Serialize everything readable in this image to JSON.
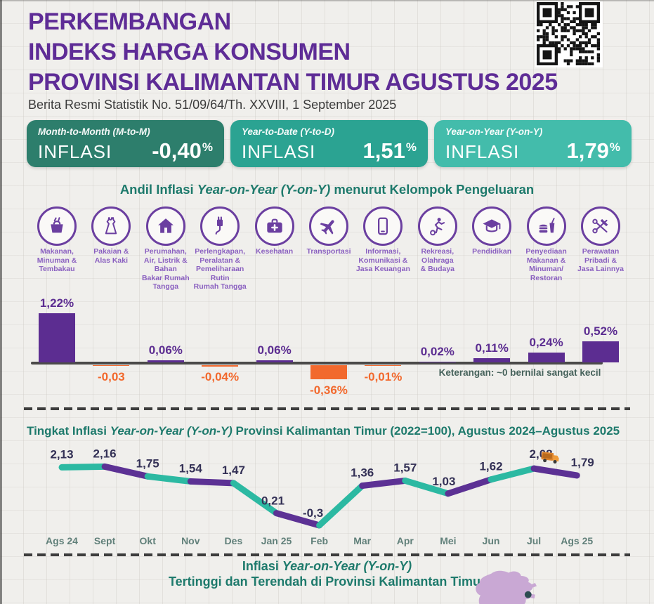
{
  "header": {
    "title_lines": [
      "PERKEMBANGAN",
      "INDEKS HARGA KONSUMEN",
      "PROVINSI KALIMANTAN TIMUR AGUSTUS 2025"
    ],
    "subtitle": "Berita Resmi Statistik No. 51/09/64/Th. XXVIII, 1 September 2025",
    "qr": "qr-code"
  },
  "stat_boxes": [
    {
      "period_label": "Month-to-Month (M-to-M)",
      "metric": "INFLASI",
      "value": "-0,40",
      "unit": "%",
      "bg": "#2d7e6c"
    },
    {
      "period_label": "Year-to-Date (Y-to-D)",
      "metric": "INFLASI",
      "value": "1,51",
      "unit": "%",
      "bg": "#2ba392"
    },
    {
      "period_label": "Year-on-Year (Y-on-Y)",
      "metric": "INFLASI",
      "value": "1,79",
      "unit": "%",
      "bg": "#43bcab"
    }
  ],
  "bar_section": {
    "title_prefix": "Andil Inflasi ",
    "title_italic": "Year-on-Year (Y-on-Y)",
    "title_suffix": " menurut Kelompok Pengeluaran",
    "note": "Keterangan: ~0 bernilai sangat kecil"
  },
  "line_section": {
    "title_prefix": "Tingkat Inflasi ",
    "title_italic": "Year-on-Year (Y-on-Y)",
    "title_suffix": " Provinsi Kalimantan Timur (2022=100), Agustus 2024–Agustus 2025"
  },
  "bottom_section": {
    "title_prefix": "Inflasi ",
    "title_italic": "Year-on-Year (Y-on-Y)",
    "title_line2": "Tertinggi dan Terendah di Provinsi Kalimantan Timur",
    "map": "kalimantan-timur-map"
  },
  "chart_data": [
    {
      "type": "bar",
      "title": "Andil Inflasi Year-on-Year (Y-on-Y) menurut Kelompok Pengeluaran",
      "categories": [
        {
          "icon": "food-basket-icon",
          "label_lines": [
            "Makanan,",
            "Minuman &",
            "Tembakau"
          ]
        },
        {
          "icon": "dress-icon",
          "label_lines": [
            "Pakaian &",
            "Alas Kaki"
          ]
        },
        {
          "icon": "house-icon",
          "label_lines": [
            "Perumahan,",
            "Air, Listrik &",
            "Bahan",
            "Bakar Rumah",
            "Tangga"
          ]
        },
        {
          "icon": "plug-icon",
          "label_lines": [
            "Perlengkapan,",
            "Peralatan &",
            "Pemeliharaan",
            "Rutin",
            "Rumah Tangga"
          ]
        },
        {
          "icon": "first-aid-kit-icon",
          "label_lines": [
            "Kesehatan"
          ]
        },
        {
          "icon": "airplane-icon",
          "label_lines": [
            "Transportasi"
          ]
        },
        {
          "icon": "smartphone-icon",
          "label_lines": [
            "Informasi,",
            "Komunikasi &",
            "Jasa Keuangan"
          ]
        },
        {
          "icon": "sports-person-icon",
          "label_lines": [
            "Rekreasi,",
            "Olahraga",
            "& Budaya"
          ]
        },
        {
          "icon": "graduation-cap-icon",
          "label_lines": [
            "Pendidikan"
          ]
        },
        {
          "icon": "food-drink-icon",
          "label_lines": [
            "Penyediaan",
            "Makanan &",
            "Minuman/",
            "Restoran"
          ]
        },
        {
          "icon": "scissors-comb-icon",
          "label_lines": [
            "Perawatan",
            "Pribadi &",
            "Jasa Lainnya"
          ]
        }
      ],
      "values": [
        1.22,
        -0.03,
        0.06,
        -0.04,
        0.06,
        -0.36,
        -0.01,
        0.02,
        0.11,
        0.24,
        0.52
      ],
      "value_labels": [
        "1,22%",
        "-0,03",
        "0,06%",
        "-0,04%",
        "0,06%",
        "-0,36%",
        "-0,01%",
        "0,02%",
        "0,11%",
        "0,24%",
        "0,52%"
      ],
      "positive_color": "#5c2d91",
      "negative_color": "#f2692d",
      "note": "Keterangan: ~0 bernilai sangat kecil"
    },
    {
      "type": "line",
      "title": "Tingkat Inflasi Year-on-Year (Y-on-Y) Provinsi Kalimantan Timur (2022=100), Agustus 2024–Agustus 2025",
      "x": [
        "Ags 24",
        "Sept",
        "Okt",
        "Nov",
        "Des",
        "Jan 25",
        "Feb",
        "Mar",
        "Apr",
        "Mei",
        "Jun",
        "Jul",
        "Ags 25"
      ],
      "values": [
        2.13,
        2.16,
        1.75,
        1.54,
        1.47,
        0.21,
        -0.3,
        1.36,
        1.57,
        1.03,
        1.62,
        2.08,
        1.79
      ],
      "value_labels": [
        "2,13",
        "2,16",
        "1,75",
        "1,54",
        "1,47",
        "0,21",
        "-0,3",
        "1,36",
        "1,57",
        "1,03",
        "1,62",
        "2,08",
        "1,79"
      ],
      "segment_colors_alternate": [
        "#2cb9a2",
        "#5c3194"
      ],
      "marker_icon": "truck-icon",
      "ylim": [
        -0.4,
        2.4
      ],
      "grid": false,
      "legend": "none"
    }
  ],
  "colors": {
    "title_purple": "#5e2c96",
    "section_teal": "#1e7a6c",
    "icon_purple": "#6b3fa0",
    "icon_label_purple": "#8a60c0",
    "bar_positive": "#5c2d91",
    "bar_negative": "#f2692d",
    "line_teal": "#2cb9a2",
    "line_purple": "#5c3194",
    "value_label_navy": "#343156",
    "month_label": "#61807a",
    "map_fill": "#c9a8d4",
    "map_dot": "#2c4b50",
    "background": "#f0efec"
  }
}
